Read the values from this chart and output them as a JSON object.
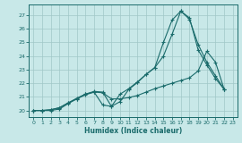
{
  "xlabel": "Humidex (Indice chaleur)",
  "xlim": [
    -0.5,
    23.5
  ],
  "ylim": [
    19.5,
    27.8
  ],
  "yticks": [
    20,
    21,
    22,
    23,
    24,
    25,
    26,
    27
  ],
  "xticks": [
    0,
    1,
    2,
    3,
    4,
    5,
    6,
    7,
    8,
    9,
    10,
    11,
    12,
    13,
    14,
    15,
    16,
    17,
    18,
    19,
    20,
    21,
    22,
    23
  ],
  "bg_color": "#c8e8e8",
  "line_color": "#1a6b6b",
  "grid_color": "#a0c8c8",
  "line1_x": [
    0,
    1,
    2,
    3,
    4,
    5,
    6,
    7,
    8,
    9,
    10,
    11,
    12,
    13,
    14,
    15,
    16,
    17,
    18,
    19,
    20,
    21,
    22
  ],
  "line1_y": [
    20.0,
    20.0,
    20.0,
    20.1,
    20.5,
    20.85,
    21.2,
    21.35,
    20.4,
    20.3,
    21.2,
    21.6,
    22.1,
    22.65,
    23.15,
    24.0,
    25.6,
    27.3,
    26.8,
    24.45,
    23.35,
    22.35,
    21.55
  ],
  "line2_x": [
    0,
    1,
    2,
    3,
    4,
    5,
    6,
    7,
    8,
    9,
    10,
    11,
    12,
    13,
    14,
    15,
    16,
    17,
    18,
    19,
    20,
    21,
    22
  ],
  "line2_y": [
    20.0,
    20.0,
    20.05,
    20.2,
    20.55,
    20.9,
    21.2,
    21.4,
    21.35,
    20.3,
    20.65,
    21.55,
    22.05,
    22.65,
    23.15,
    25.0,
    26.65,
    27.3,
    26.7,
    24.85,
    23.55,
    22.55,
    21.55
  ],
  "line3_x": [
    0,
    1,
    2,
    3,
    4,
    5,
    6,
    7,
    8,
    9,
    10,
    11,
    12,
    13,
    14,
    15,
    16,
    17,
    18,
    19,
    20,
    21,
    22
  ],
  "line3_y": [
    20.0,
    20.0,
    20.05,
    20.2,
    20.55,
    20.85,
    21.15,
    21.35,
    21.3,
    20.85,
    20.85,
    20.95,
    21.1,
    21.35,
    21.6,
    21.8,
    22.0,
    22.2,
    22.4,
    22.9,
    24.35,
    23.55,
    21.55
  ]
}
